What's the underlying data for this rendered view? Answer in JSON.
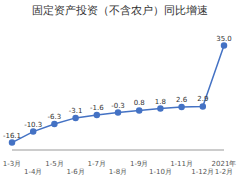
{
  "chart_data": {
    "type": "line",
    "title": "固定资产投资（不含农户）同比增速",
    "categories": [
      "1-3月",
      "1-4月",
      "1-5月",
      "1-6月",
      "1-7月",
      "1-8月",
      "1-9月",
      "1-10月",
      "1-11月",
      "1-12月",
      "2021年1-2月"
    ],
    "values": [
      -16.1,
      -10.3,
      -6.3,
      -3.1,
      -1.6,
      -0.3,
      0.8,
      1.8,
      2.6,
      2.9,
      35.0
    ],
    "value_labels": [
      "-16.1",
      "-10.3",
      "-6.3",
      "-3.1",
      "-1.6",
      "-0.3",
      "0.8",
      "1.8",
      "2.6",
      "2.9",
      "35.0"
    ],
    "color": "#4472c4",
    "marker": "circle",
    "ylim": [
      -20,
      40
    ],
    "data_labels": true,
    "tick_labels": "x",
    "grid": false
  }
}
